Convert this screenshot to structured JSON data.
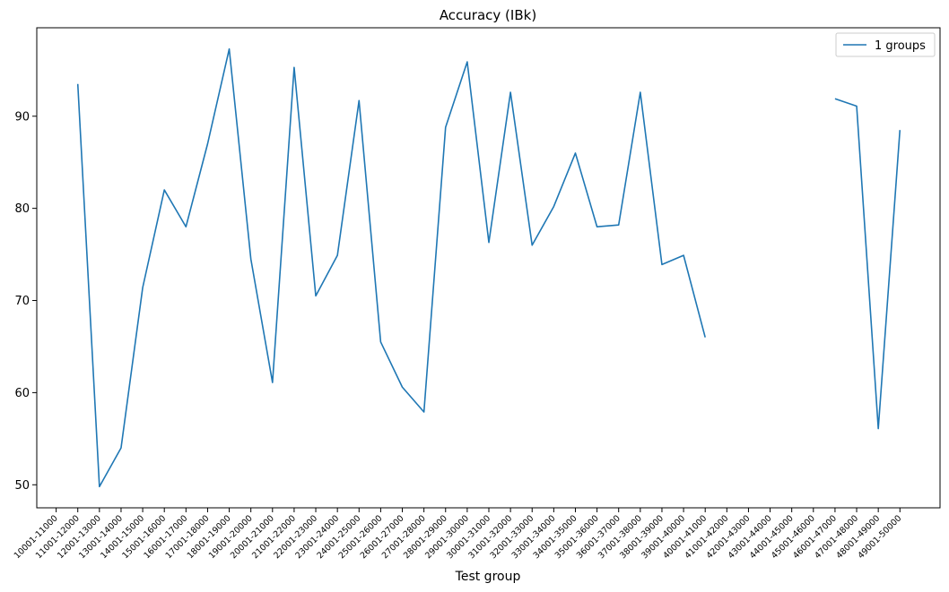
{
  "chart_data": {
    "type": "line",
    "title": "Accuracy (IBk)",
    "xlabel": "Test group",
    "ylabel": "",
    "ylim": [
      47.5,
      99.6
    ],
    "yticks": [
      50,
      60,
      70,
      80,
      90
    ],
    "legend_position": "top-right",
    "categories": [
      "10001-11000",
      "11001-12000",
      "12001-13000",
      "13001-14000",
      "14001-15000",
      "15001-16000",
      "16001-17000",
      "17001-18000",
      "18001-19000",
      "19001-20000",
      "20001-21000",
      "21001-22000",
      "22001-23000",
      "23001-24000",
      "24001-25000",
      "25001-26000",
      "26001-27000",
      "27001-28000",
      "28001-29000",
      "29001-30000",
      "30001-31000",
      "31001-32000",
      "32001-33000",
      "33001-34000",
      "34001-35000",
      "35001-36000",
      "36001-37000",
      "37001-38000",
      "38001-39000",
      "39001-40000",
      "40001-41000",
      "41001-42000",
      "42001-43000",
      "43001-44000",
      "44001-45000",
      "45001-46000",
      "46001-47000",
      "47001-48000",
      "48001-49000",
      "49001-50000"
    ],
    "series": [
      {
        "name": "1 groups",
        "color": "#1f77b4",
        "values": [
          null,
          93.5,
          49.8,
          54.0,
          71.4,
          82.0,
          78.0,
          87.0,
          97.3,
          74.5,
          61.1,
          95.3,
          70.5,
          74.9,
          91.7,
          65.5,
          60.6,
          57.9,
          88.8,
          95.9,
          76.3,
          92.6,
          76.0,
          80.2,
          86.0,
          78.0,
          78.2,
          92.6,
          73.9,
          74.9,
          66.0,
          null,
          null,
          null,
          null,
          null,
          91.9,
          91.1,
          56.1,
          88.5
        ]
      }
    ]
  }
}
